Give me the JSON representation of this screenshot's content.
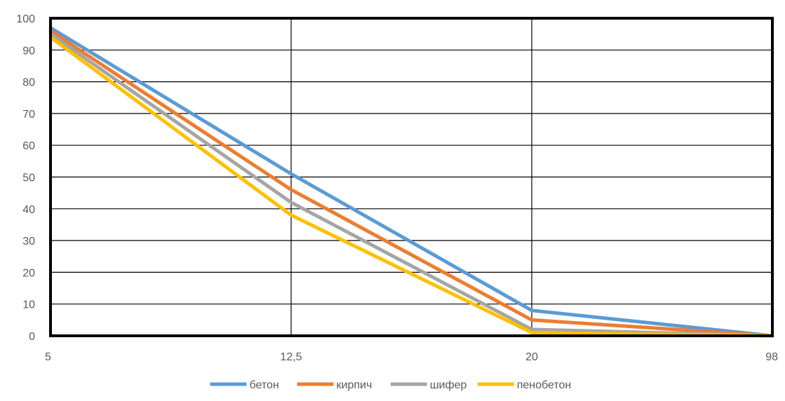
{
  "chart_data": {
    "type": "line",
    "title": "",
    "xlabel": "",
    "ylabel": "",
    "categories": [
      "5",
      "12,5",
      "20",
      "98"
    ],
    "ylim": [
      0,
      100
    ],
    "yticks": [
      0,
      10,
      20,
      30,
      40,
      50,
      60,
      70,
      80,
      90,
      100
    ],
    "grid": true,
    "legend": "bottom",
    "series": [
      {
        "name": "бетон",
        "color": "#5B9BD5",
        "values": [
          97,
          51,
          8,
          0
        ]
      },
      {
        "name": "кирпич",
        "color": "#ED7D31",
        "values": [
          96,
          46,
          5,
          0
        ]
      },
      {
        "name": "шифер",
        "color": "#A5A5A5",
        "values": [
          95,
          42,
          2,
          0
        ]
      },
      {
        "name": "пенобетон",
        "color": "#FFC000",
        "values": [
          94,
          38,
          1,
          0
        ]
      }
    ]
  }
}
